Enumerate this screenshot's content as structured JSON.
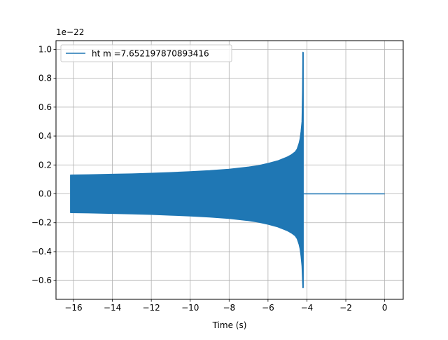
{
  "chart_data": {
    "type": "line",
    "xlabel": "Time (s)",
    "ylabel": "",
    "y_scale_label": "1e−22",
    "xlim": [
      -16.9,
      0.95
    ],
    "ylim": [
      -0.73,
      1.06
    ],
    "grid": true,
    "legend_position": "top-left",
    "x_ticks": [
      -16,
      -14,
      -12,
      -10,
      -8,
      -6,
      -4,
      -2,
      0
    ],
    "x_tick_labels": [
      "−16",
      "−14",
      "−12",
      "−10",
      "−8",
      "−6",
      "−4",
      "−2",
      "0"
    ],
    "y_ticks": [
      -0.6,
      -0.4,
      -0.2,
      0.0,
      0.2,
      0.4,
      0.6,
      0.8,
      1.0
    ],
    "y_tick_labels": [
      "−0.6",
      "−0.4",
      "−0.2",
      "0.0",
      "0.2",
      "0.4",
      "0.6",
      "0.8",
      "1.0"
    ],
    "series": [
      {
        "name": "ht m =7.652197870893416",
        "color": "#1f77b4",
        "upper_envelope": {
          "x": [
            -16.15,
            -15,
            -14,
            -13,
            -12,
            -11,
            -10,
            -9,
            -8,
            -7,
            -6.5,
            -6,
            -5.5,
            -5.0,
            -4.8,
            -4.6,
            -4.5,
            -4.4,
            -4.35,
            -4.3,
            -4.25,
            -4.22,
            -4.2
          ],
          "y": [
            0.13,
            0.132,
            0.135,
            0.138,
            0.142,
            0.147,
            0.153,
            0.16,
            0.17,
            0.185,
            0.195,
            0.21,
            0.228,
            0.255,
            0.27,
            0.29,
            0.31,
            0.35,
            0.38,
            0.43,
            0.5,
            0.72,
            0.98
          ]
        },
        "lower_envelope": {
          "x": [
            -16.15,
            -15,
            -14,
            -13,
            -12,
            -11,
            -10,
            -9,
            -8,
            -7,
            -6.5,
            -6,
            -5.5,
            -5.0,
            -4.8,
            -4.6,
            -4.5,
            -4.4,
            -4.35,
            -4.3,
            -4.25,
            -4.22,
            -4.2
          ],
          "y": [
            -0.13,
            -0.132,
            -0.135,
            -0.138,
            -0.142,
            -0.147,
            -0.153,
            -0.16,
            -0.17,
            -0.185,
            -0.195,
            -0.21,
            -0.228,
            -0.255,
            -0.27,
            -0.29,
            -0.31,
            -0.35,
            -0.38,
            -0.43,
            -0.5,
            -0.6,
            -0.65
          ]
        },
        "tail": {
          "x": [
            -4.2,
            0.0
          ],
          "y": [
            0.0,
            0.0
          ]
        }
      }
    ]
  }
}
